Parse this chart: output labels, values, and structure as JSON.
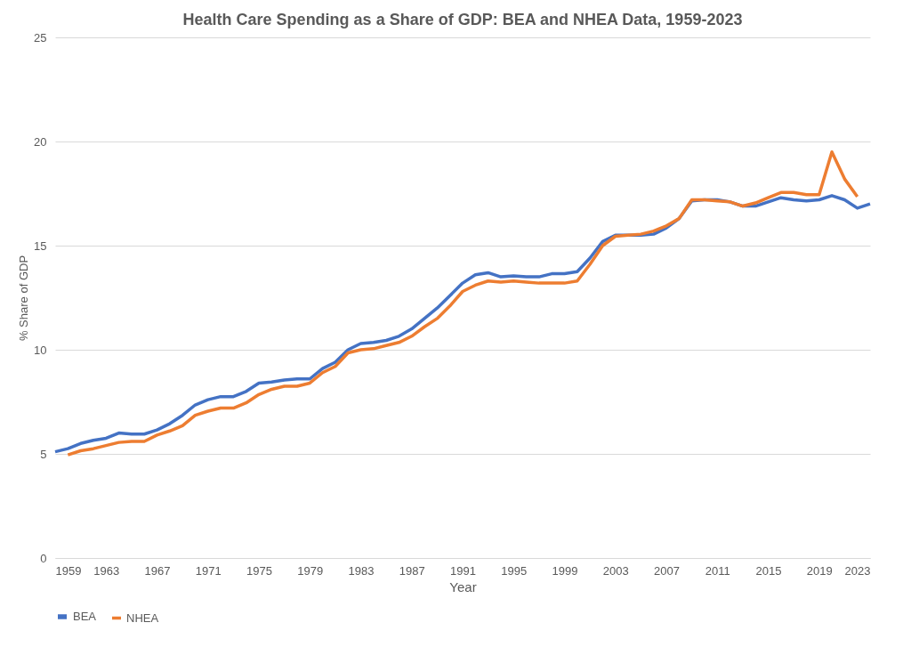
{
  "chart_data": {
    "type": "line",
    "title": "Health Care Spending as a Share of GDP: BEA and NHEA Data, 1959-2023",
    "xlabel": "Year",
    "ylabel": "% Share of GDP",
    "xlim": [
      1959,
      2023
    ],
    "xticks": [
      1959,
      1963,
      1967,
      1971,
      1975,
      1979,
      1983,
      1987,
      1991,
      1995,
      1999,
      2003,
      2007,
      2011,
      2015,
      2019,
      2023
    ],
    "ylim": [
      0,
      25
    ],
    "yticks": [
      0,
      5,
      10,
      15,
      20,
      25
    ],
    "grid": "y",
    "legend": "bottom",
    "marker": "none",
    "line_style": "solid",
    "series": [
      {
        "name": "BEA",
        "color": "#4472c4",
        "x": [
          1959,
          1960,
          1961,
          1962,
          1963,
          1964,
          1965,
          1966,
          1967,
          1968,
          1969,
          1970,
          1971,
          1972,
          1973,
          1974,
          1975,
          1976,
          1977,
          1978,
          1979,
          1980,
          1981,
          1982,
          1983,
          1984,
          1985,
          1986,
          1987,
          1988,
          1989,
          1990,
          1991,
          1992,
          1993,
          1994,
          1995,
          1996,
          1997,
          1998,
          1999,
          2000,
          2001,
          2002,
          2003,
          2004,
          2005,
          2006,
          2007,
          2008,
          2009,
          2010,
          2011,
          2012,
          2013,
          2014,
          2015,
          2016,
          2017,
          2018,
          2019,
          2020,
          2021,
          2022,
          2023
        ],
        "values": [
          5.1,
          5.25,
          5.5,
          5.65,
          5.75,
          6.0,
          5.95,
          5.95,
          6.15,
          6.45,
          6.85,
          7.35,
          7.6,
          7.75,
          7.75,
          8.0,
          8.4,
          8.45,
          8.55,
          8.6,
          8.6,
          9.1,
          9.4,
          10.0,
          10.3,
          10.35,
          10.45,
          10.65,
          11.0,
          11.5,
          12.0,
          12.6,
          13.2,
          13.6,
          13.7,
          13.5,
          13.55,
          13.5,
          13.5,
          13.65,
          13.65,
          13.75,
          14.4,
          15.2,
          15.5,
          15.5,
          15.5,
          15.55,
          15.85,
          16.3,
          17.15,
          17.2,
          17.2,
          17.1,
          16.9,
          16.9,
          17.1,
          17.3,
          17.2,
          17.15,
          17.2,
          17.4,
          17.2,
          16.8,
          17.0
        ]
      },
      {
        "name": "NHEA",
        "color": "#ed7d31",
        "x": [
          1960,
          1961,
          1962,
          1963,
          1964,
          1965,
          1966,
          1967,
          1968,
          1969,
          1970,
          1971,
          1972,
          1973,
          1974,
          1975,
          1976,
          1977,
          1978,
          1979,
          1980,
          1981,
          1982,
          1983,
          1984,
          1985,
          1986,
          1987,
          1988,
          1989,
          1990,
          1991,
          1992,
          1993,
          1994,
          1995,
          1996,
          1997,
          1998,
          1999,
          2000,
          2001,
          2002,
          2003,
          2004,
          2005,
          2006,
          2007,
          2008,
          2009,
          2010,
          2011,
          2012,
          2013,
          2014,
          2015,
          2016,
          2017,
          2018,
          2019,
          2020,
          2021,
          2022
        ],
        "values": [
          4.95,
          5.15,
          5.25,
          5.4,
          5.55,
          5.6,
          5.6,
          5.9,
          6.1,
          6.35,
          6.85,
          7.05,
          7.2,
          7.2,
          7.45,
          7.85,
          8.1,
          8.25,
          8.25,
          8.4,
          8.9,
          9.2,
          9.85,
          10.0,
          10.05,
          10.2,
          10.35,
          10.65,
          11.1,
          11.5,
          12.1,
          12.8,
          13.1,
          13.3,
          13.25,
          13.3,
          13.25,
          13.2,
          13.2,
          13.2,
          13.3,
          14.1,
          15.0,
          15.45,
          15.5,
          15.55,
          15.7,
          15.95,
          16.3,
          17.2,
          17.2,
          17.15,
          17.1,
          16.9,
          17.05,
          17.3,
          17.55,
          17.55,
          17.45,
          17.45,
          19.5,
          18.2,
          17.35
        ]
      }
    ]
  }
}
